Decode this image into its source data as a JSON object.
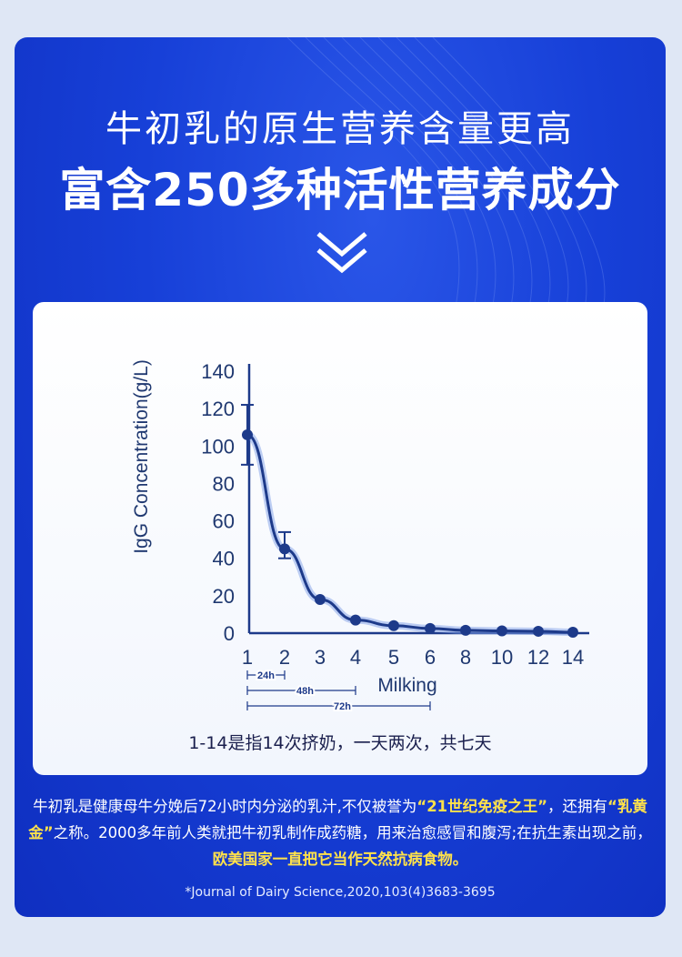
{
  "header": {
    "title": "牛初乳的原生营养含量更高",
    "subtitle": "富含250多种活性营养成分"
  },
  "chart_note": "1-14是指14次挤奶，一天两次，共七天",
  "colors": {
    "background": "#1740d8",
    "line": "#1d3a8a",
    "highlight": "#ffe24a"
  },
  "body": {
    "p1": "牛初乳是健康母牛分娩后72小时内分泌的乳汁,不仅被誉为",
    "h1": "“21世纪免疫之王”",
    "p2": "，还拥有",
    "h2": "“乳黄金”",
    "p3": "之称。2000多年前人类就把牛初乳制作成药糖，用来治愈感冒和腹泻;在抗生素出现之前，",
    "h3": "欧美国家一直把它当作天然抗病食物。"
  },
  "reference": "*Journal of Dairy Science,2020,103(4)3683-3695",
  "chart_data": {
    "type": "line",
    "ylabel": "IgG Concentration(g/L)",
    "xlabel": "Milking",
    "x": [
      "1",
      "2",
      "3",
      "4",
      "5",
      "6",
      "8",
      "10",
      "12",
      "14"
    ],
    "values": [
      106,
      45,
      18,
      7,
      4,
      2.5,
      1.5,
      1.2,
      1,
      0.5
    ],
    "error_bars": [
      {
        "x": "1",
        "low": 90,
        "high": 122
      },
      {
        "x": "2",
        "low": 40,
        "high": 54
      }
    ],
    "yticks": [
      0,
      20,
      40,
      60,
      80,
      100,
      120,
      140
    ],
    "ylim": [
      0,
      140
    ],
    "intervals": [
      {
        "label": "24h",
        "from": "1",
        "to": "2"
      },
      {
        "label": "48h",
        "from": "1",
        "to": "4"
      },
      {
        "label": "72h",
        "from": "1",
        "to": "6"
      }
    ]
  }
}
